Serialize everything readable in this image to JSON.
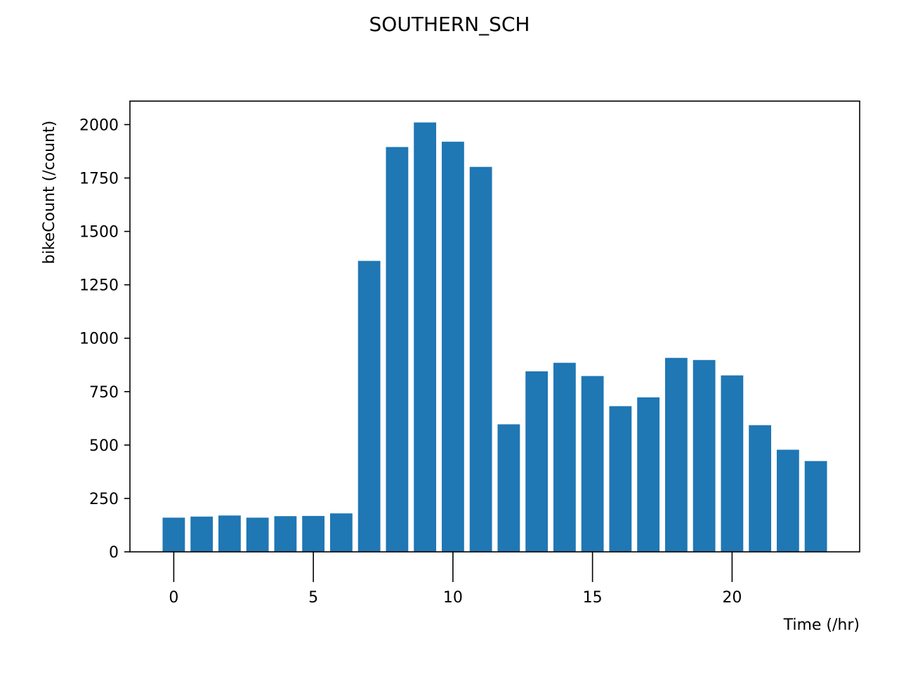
{
  "chart_data": {
    "type": "bar",
    "title": "SOUTHERN_SCH",
    "xlabel": "Time (/hr)",
    "ylabel": "bikeCount (/count)",
    "x": [
      0,
      1,
      2,
      3,
      4,
      5,
      6,
      7,
      8,
      9,
      10,
      11,
      12,
      13,
      14,
      15,
      16,
      17,
      18,
      19,
      20,
      21,
      22,
      23
    ],
    "values": [
      160,
      165,
      170,
      160,
      167,
      168,
      180,
      1362,
      1895,
      2010,
      1920,
      1802,
      597,
      845,
      885,
      823,
      682,
      723,
      908,
      898,
      826,
      593,
      478,
      425
    ],
    "xticks": [
      0,
      5,
      10,
      15,
      20
    ],
    "xtick_labels": [
      "0",
      "5",
      "10",
      "15",
      "20"
    ],
    "yticks": [
      0,
      250,
      500,
      750,
      1000,
      1250,
      1500,
      1750,
      2000
    ],
    "ytick_labels": [
      "0",
      "250",
      "500",
      "750",
      "1000",
      "1250",
      "1500",
      "1750",
      "2000"
    ],
    "xlim": [
      -1.57,
      24.57
    ],
    "ylim": [
      0,
      2110
    ],
    "bar_color": "#1f77b4",
    "grid": false,
    "legend": "none"
  }
}
